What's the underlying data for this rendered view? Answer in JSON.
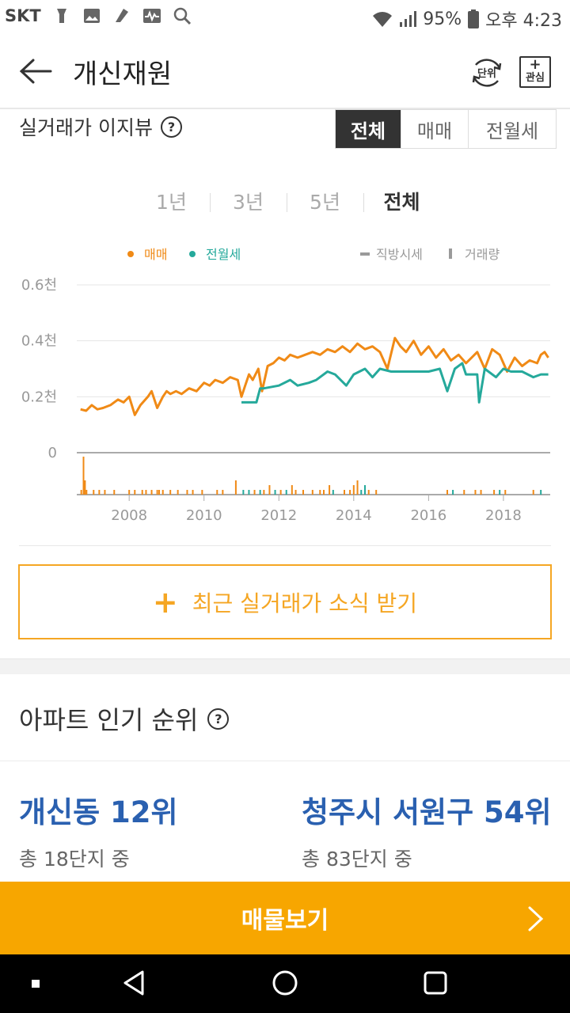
{
  "status_bar": {
    "carrier": "SKT",
    "battery": "95%",
    "time": "오후 4:23"
  },
  "header": {
    "title": "개신재원",
    "unit_label": "단위",
    "fav_plus": "+",
    "fav_label": "관심"
  },
  "price_section": {
    "title": "실거래가 이지뷰",
    "help": "?",
    "type_tabs": [
      "전체",
      "매매",
      "전월세"
    ],
    "type_selected": "전체",
    "period_tabs": [
      "1년",
      "3년",
      "5년",
      "전체"
    ],
    "period_selected": "전체"
  },
  "chart_data": {
    "type": "line",
    "legend": [
      "매매",
      "전월세",
      "직방시세",
      "거래량"
    ],
    "legend_position": "top",
    "colors": {
      "매매": "#f08a16",
      "전월세": "#25a99b",
      "직방시세": "#9a9a9a",
      "거래량": "#9a9a9a"
    },
    "y_unit": "천",
    "y_ticks": [
      "0.6천",
      "0.4천",
      "0.2천",
      "0"
    ],
    "ylim": [
      0,
      0.6
    ],
    "x_ticks": [
      "2008",
      "2010",
      "2012",
      "2014",
      "2016",
      "2018"
    ],
    "xlim": [
      2006.6,
      2019.25
    ],
    "grid": true,
    "series": [
      {
        "name": "매매",
        "x": [
          2006.7,
          2006.85,
          2007.0,
          2007.15,
          2007.3,
          2007.5,
          2007.7,
          2007.85,
          2008.0,
          2008.15,
          2008.3,
          2008.5,
          2008.6,
          2008.75,
          2008.9,
          2009.0,
          2009.1,
          2009.25,
          2009.4,
          2009.6,
          2009.8,
          2010.0,
          2010.15,
          2010.3,
          2010.5,
          2010.7,
          2010.9,
          2011.0,
          2011.1,
          2011.2,
          2011.3,
          2011.45,
          2011.55,
          2011.7,
          2011.85,
          2012.0,
          2012.15,
          2012.3,
          2012.5,
          2012.7,
          2012.9,
          2013.1,
          2013.3,
          2013.5,
          2013.7,
          2013.9,
          2014.1,
          2014.3,
          2014.5,
          2014.7,
          2014.9,
          2015.1,
          2015.25,
          2015.4,
          2015.6,
          2015.8,
          2016.0,
          2016.2,
          2016.4,
          2016.6,
          2016.8,
          2017.0,
          2017.15,
          2017.3,
          2017.5,
          2017.7,
          2017.9,
          2018.1,
          2018.3,
          2018.5,
          2018.7,
          2018.9,
          2019.0,
          2019.1,
          2019.2
        ],
        "values": [
          0.155,
          0.15,
          0.17,
          0.155,
          0.16,
          0.17,
          0.19,
          0.18,
          0.2,
          0.135,
          0.17,
          0.2,
          0.22,
          0.16,
          0.2,
          0.22,
          0.21,
          0.22,
          0.21,
          0.23,
          0.22,
          0.25,
          0.24,
          0.26,
          0.25,
          0.27,
          0.26,
          0.2,
          0.24,
          0.28,
          0.26,
          0.3,
          0.22,
          0.31,
          0.32,
          0.34,
          0.33,
          0.35,
          0.34,
          0.35,
          0.36,
          0.35,
          0.37,
          0.36,
          0.38,
          0.36,
          0.39,
          0.37,
          0.38,
          0.36,
          0.3,
          0.41,
          0.38,
          0.36,
          0.4,
          0.35,
          0.38,
          0.34,
          0.37,
          0.33,
          0.35,
          0.32,
          0.34,
          0.36,
          0.3,
          0.37,
          0.35,
          0.29,
          0.34,
          0.31,
          0.33,
          0.32,
          0.35,
          0.36,
          0.34
        ]
      },
      {
        "name": "전월세",
        "x": [
          2011.0,
          2011.4,
          2011.5,
          2011.6,
          2012.0,
          2012.3,
          2012.5,
          2012.8,
          2013.0,
          2013.3,
          2013.5,
          2013.8,
          2014.0,
          2014.3,
          2014.5,
          2014.7,
          2015.0,
          2015.5,
          2016.0,
          2016.3,
          2016.5,
          2016.7,
          2016.9,
          2017.0,
          2017.3,
          2017.35,
          2017.5,
          2017.8,
          2018.0,
          2018.2,
          2018.5,
          2018.8,
          2019.0,
          2019.2
        ],
        "values": [
          0.18,
          0.18,
          0.23,
          0.23,
          0.24,
          0.26,
          0.24,
          0.25,
          0.26,
          0.29,
          0.28,
          0.24,
          0.28,
          0.3,
          0.27,
          0.3,
          0.29,
          0.29,
          0.29,
          0.3,
          0.22,
          0.3,
          0.32,
          0.28,
          0.28,
          0.18,
          0.3,
          0.27,
          0.3,
          0.29,
          0.29,
          0.27,
          0.28,
          0.28
        ]
      }
    ],
    "volume_bars": {
      "x": [
        2006.72,
        2006.78,
        2006.82,
        2006.86,
        2007.05,
        2007.2,
        2007.35,
        2007.6,
        2008.0,
        2008.15,
        2008.35,
        2008.45,
        2008.6,
        2008.75,
        2008.8,
        2008.9,
        2009.1,
        2009.3,
        2009.55,
        2009.7,
        2009.95,
        2010.35,
        2010.5,
        2010.85,
        2011.05,
        2011.2,
        2011.35,
        2011.5,
        2011.6,
        2011.75,
        2011.9,
        2012.05,
        2012.2,
        2012.35,
        2012.45,
        2012.65,
        2012.9,
        2013.1,
        2013.2,
        2013.35,
        2013.45,
        2013.75,
        2013.9,
        2014.0,
        2014.1,
        2014.2,
        2014.3,
        2014.4,
        2014.6,
        2016.5,
        2016.65,
        2016.95,
        2017.25,
        2017.4,
        2017.75,
        2017.9,
        2018.05,
        2018.8,
        2019.0
      ],
      "values": [
        1,
        8,
        3,
        1,
        1,
        1,
        1,
        1,
        1,
        1,
        1,
        1,
        1,
        1,
        1,
        1,
        1,
        1,
        1,
        1,
        1,
        1,
        1,
        3,
        1,
        1,
        1,
        1,
        1,
        2,
        1,
        1,
        1,
        2,
        1,
        1,
        1,
        1,
        1,
        2,
        1,
        1,
        1,
        2,
        3,
        1,
        2,
        1,
        1,
        1,
        1,
        1,
        1,
        1,
        1,
        1,
        1,
        1,
        1
      ],
      "kinds": [
        "s",
        "s",
        "s",
        "s",
        "s",
        "s",
        "s",
        "s",
        "s",
        "s",
        "s",
        "s",
        "s",
        "s",
        "s",
        "s",
        "s",
        "s",
        "s",
        "s",
        "s",
        "s",
        "s",
        "s",
        "r",
        "r",
        "s",
        "r",
        "s",
        "s",
        "r",
        "s",
        "r",
        "s",
        "s",
        "s",
        "s",
        "s",
        "s",
        "s",
        "r",
        "s",
        "s",
        "s",
        "s",
        "r",
        "r",
        "s",
        "s",
        "s",
        "r",
        "s",
        "s",
        "s",
        "s",
        "r",
        "s",
        "s",
        "r"
      ]
    }
  },
  "subscribe": {
    "plus": "+",
    "label": "최근 실거래가 소식 받기"
  },
  "ranking": {
    "title": "아파트 인기 순위",
    "help": "?",
    "items": [
      {
        "main": "개신동 12위",
        "sub": "총 18단지 중"
      },
      {
        "main": "청주시 서원구 54위",
        "sub": "총 83단지 중"
      }
    ]
  },
  "bottom_button": {
    "label": "매물보기"
  },
  "icons": {
    "back": "arrow-left-icon",
    "unit": "unit-refresh-icon",
    "fav": "add-favorite-icon",
    "help": "question-circle-icon",
    "chevron": "chevron-right-icon"
  }
}
